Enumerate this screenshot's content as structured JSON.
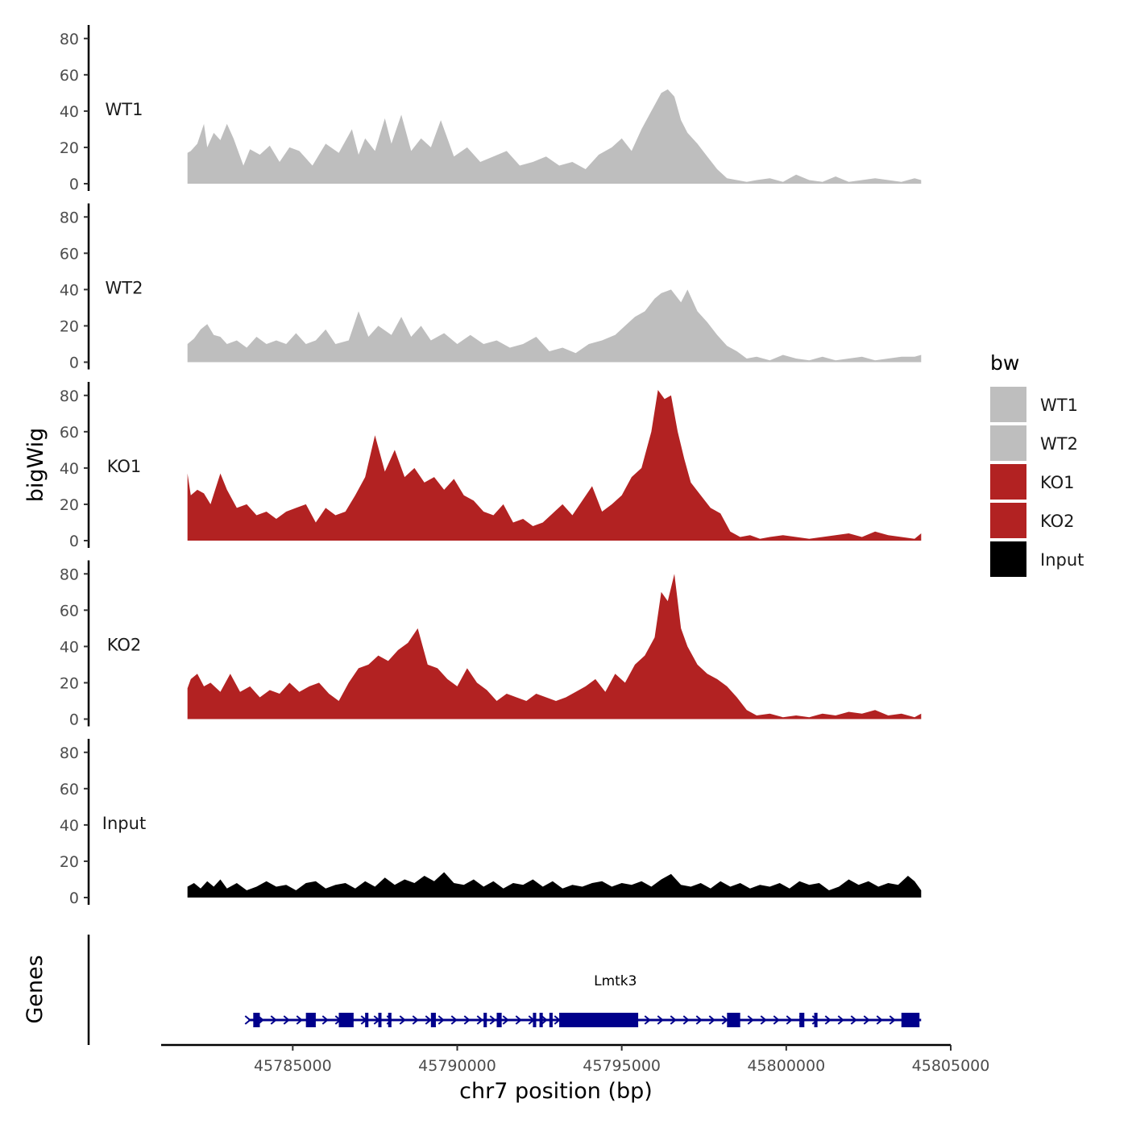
{
  "chart_data": {
    "type": "area",
    "xlabel": "chr7 position (bp)",
    "ylabel": "bigWig",
    "genes_label": "Genes",
    "xlim": [
      45781000,
      45805000
    ],
    "region": [
      45781800,
      45804100
    ],
    "xticks": [
      45785000,
      45790000,
      45795000,
      45800000,
      45805000
    ],
    "xtick_labels": [
      "45785000",
      "45790000",
      "45795000",
      "45800000",
      "45805000"
    ],
    "ylim": [
      0,
      85
    ],
    "yticks": [
      0,
      20,
      40,
      60,
      80
    ],
    "ytick_labels": [
      "0",
      "20",
      "40",
      "60",
      "80"
    ],
    "legend": {
      "title": "bw",
      "entries": [
        {
          "name": "WT1",
          "color": "#bebebe"
        },
        {
          "name": "WT2",
          "color": "#bebebe"
        },
        {
          "name": "KO1",
          "color": "#b22222"
        },
        {
          "name": "KO2",
          "color": "#b22222"
        },
        {
          "name": "Input",
          "color": "#000000"
        }
      ]
    },
    "series": [
      {
        "name": "WT1",
        "color": "#bebebe",
        "x": [
          45781800,
          45781900,
          45782100,
          45782300,
          45782400,
          45782600,
          45782800,
          45783000,
          45783200,
          45783500,
          45783700,
          45784000,
          45784300,
          45784600,
          45784900,
          45785200,
          45785600,
          45786000,
          45786400,
          45786800,
          45787000,
          45787200,
          45787500,
          45787800,
          45788000,
          45788300,
          45788600,
          45788900,
          45789200,
          45789500,
          45789900,
          45790300,
          45790700,
          45791100,
          45791500,
          45791900,
          45792300,
          45792700,
          45793100,
          45793500,
          45793900,
          45794300,
          45794700,
          45795000,
          45795300,
          45795600,
          45795900,
          45796200,
          45796400,
          45796600,
          45796800,
          45797000,
          45797300,
          45797600,
          45797900,
          45798200,
          45798500,
          45798800,
          45799100,
          45799500,
          45799900,
          45800300,
          45800700,
          45801100,
          45801500,
          45801900,
          45802300,
          45802700,
          45803100,
          45803500,
          45803900,
          45804100
        ],
        "values": [
          17,
          18,
          22,
          33,
          20,
          28,
          24,
          33,
          25,
          10,
          19,
          16,
          21,
          12,
          20,
          18,
          10,
          22,
          17,
          30,
          16,
          25,
          18,
          36,
          22,
          38,
          18,
          25,
          20,
          35,
          15,
          20,
          12,
          15,
          18,
          10,
          12,
          15,
          10,
          12,
          8,
          16,
          20,
          25,
          18,
          30,
          40,
          50,
          52,
          48,
          35,
          28,
          22,
          15,
          8,
          3,
          2,
          1,
          2,
          3,
          1,
          5,
          2,
          1,
          4,
          1,
          2,
          3,
          2,
          1,
          3,
          2
        ]
      },
      {
        "name": "WT2",
        "color": "#bebebe",
        "x": [
          45781800,
          45782000,
          45782200,
          45782400,
          45782600,
          45782800,
          45783000,
          45783300,
          45783600,
          45783900,
          45784200,
          45784500,
          45784800,
          45785100,
          45785400,
          45785700,
          45786000,
          45786300,
          45786700,
          45787000,
          45787300,
          45787600,
          45788000,
          45788300,
          45788600,
          45788900,
          45789200,
          45789600,
          45790000,
          45790400,
          45790800,
          45791200,
          45791600,
          45792000,
          45792400,
          45792800,
          45793200,
          45793600,
          45794000,
          45794400,
          45794800,
          45795100,
          45795400,
          45795700,
          45796000,
          45796200,
          45796500,
          45796800,
          45797000,
          45797300,
          45797600,
          45797900,
          45798200,
          45798500,
          45798800,
          45799100,
          45799500,
          45799900,
          45800300,
          45800700,
          45801100,
          45801500,
          45801900,
          45802300,
          45802700,
          45803100,
          45803500,
          45803900,
          45804100
        ],
        "values": [
          10,
          13,
          18,
          21,
          15,
          14,
          10,
          12,
          8,
          14,
          10,
          12,
          10,
          16,
          10,
          12,
          18,
          10,
          12,
          28,
          14,
          20,
          15,
          25,
          14,
          20,
          12,
          16,
          10,
          15,
          10,
          12,
          8,
          10,
          14,
          6,
          8,
          5,
          10,
          12,
          15,
          20,
          25,
          28,
          35,
          38,
          40,
          33,
          40,
          28,
          22,
          15,
          9,
          6,
          2,
          3,
          1,
          4,
          2,
          1,
          3,
          1,
          2,
          3,
          1,
          2,
          3,
          3,
          4
        ]
      },
      {
        "name": "KO1",
        "color": "#b22222",
        "x": [
          45781800,
          45781900,
          45782100,
          45782300,
          45782500,
          45782800,
          45783000,
          45783300,
          45783600,
          45783900,
          45784200,
          45784500,
          45784800,
          45785100,
          45785400,
          45785700,
          45786000,
          45786300,
          45786600,
          45786900,
          45787200,
          45787500,
          45787800,
          45788100,
          45788400,
          45788700,
          45789000,
          45789300,
          45789600,
          45789900,
          45790200,
          45790500,
          45790800,
          45791100,
          45791400,
          45791700,
          45792000,
          45792300,
          45792600,
          45792900,
          45793200,
          45793500,
          45793800,
          45794100,
          45794400,
          45794700,
          45795000,
          45795300,
          45795600,
          45795900,
          45796100,
          45796300,
          45796500,
          45796700,
          45796900,
          45797100,
          45797400,
          45797700,
          45798000,
          45798300,
          45798600,
          45798900,
          45799200,
          45799500,
          45799900,
          45800300,
          45800700,
          45801100,
          45801500,
          45801900,
          45802300,
          45802700,
          45803100,
          45803500,
          45803900,
          45804100
        ],
        "values": [
          37,
          25,
          28,
          26,
          20,
          37,
          28,
          18,
          20,
          14,
          16,
          12,
          16,
          18,
          20,
          10,
          18,
          14,
          16,
          25,
          35,
          58,
          38,
          50,
          35,
          40,
          32,
          35,
          28,
          34,
          25,
          22,
          16,
          14,
          20,
          10,
          12,
          8,
          10,
          15,
          20,
          14,
          22,
          30,
          16,
          20,
          25,
          35,
          40,
          60,
          83,
          78,
          80,
          60,
          45,
          32,
          25,
          18,
          15,
          5,
          2,
          3,
          1,
          2,
          3,
          2,
          1,
          2,
          3,
          4,
          2,
          5,
          3,
          2,
          1,
          4
        ]
      },
      {
        "name": "KO2",
        "color": "#b22222",
        "x": [
          45781800,
          45781900,
          45782100,
          45782300,
          45782500,
          45782800,
          45783100,
          45783400,
          45783700,
          45784000,
          45784300,
          45784600,
          45784900,
          45785200,
          45785500,
          45785800,
          45786100,
          45786400,
          45786700,
          45787000,
          45787300,
          45787600,
          45787900,
          45788200,
          45788500,
          45788800,
          45789100,
          45789400,
          45789700,
          45790000,
          45790300,
          45790600,
          45790900,
          45791200,
          45791500,
          45791800,
          45792100,
          45792400,
          45792700,
          45793000,
          45793300,
          45793600,
          45793900,
          45794200,
          45794500,
          45794800,
          45795100,
          45795400,
          45795700,
          45796000,
          45796200,
          45796400,
          45796600,
          45796800,
          45797000,
          45797300,
          45797600,
          45797900,
          45798200,
          45798500,
          45798800,
          45799100,
          45799500,
          45799900,
          45800300,
          45800700,
          45801100,
          45801500,
          45801900,
          45802300,
          45802700,
          45803100,
          45803500,
          45803900,
          45804100
        ],
        "values": [
          17,
          22,
          25,
          18,
          20,
          15,
          25,
          15,
          18,
          12,
          16,
          14,
          20,
          15,
          18,
          20,
          14,
          10,
          20,
          28,
          30,
          35,
          32,
          38,
          42,
          50,
          30,
          28,
          22,
          18,
          28,
          20,
          16,
          10,
          14,
          12,
          10,
          14,
          12,
          10,
          12,
          15,
          18,
          22,
          15,
          25,
          20,
          30,
          35,
          45,
          70,
          65,
          80,
          50,
          40,
          30,
          25,
          22,
          18,
          12,
          5,
          2,
          3,
          1,
          2,
          1,
          3,
          2,
          4,
          3,
          5,
          2,
          3,
          1,
          3
        ]
      },
      {
        "name": "Input",
        "color": "#000000",
        "x": [
          45781800,
          45782000,
          45782200,
          45782400,
          45782600,
          45782800,
          45783000,
          45783300,
          45783600,
          45783900,
          45784200,
          45784500,
          45784800,
          45785100,
          45785400,
          45785700,
          45786000,
          45786300,
          45786600,
          45786900,
          45787200,
          45787500,
          45787800,
          45788100,
          45788400,
          45788700,
          45789000,
          45789300,
          45789600,
          45789900,
          45790200,
          45790500,
          45790800,
          45791100,
          45791400,
          45791700,
          45792000,
          45792300,
          45792600,
          45792900,
          45793200,
          45793500,
          45793800,
          45794100,
          45794400,
          45794700,
          45795000,
          45795300,
          45795600,
          45795900,
          45796200,
          45796500,
          45796800,
          45797100,
          45797400,
          45797700,
          45798000,
          45798300,
          45798600,
          45798900,
          45799200,
          45799500,
          45799800,
          45800100,
          45800400,
          45800700,
          45801000,
          45801300,
          45801600,
          45801900,
          45802200,
          45802500,
          45802800,
          45803100,
          45803400,
          45803700,
          45803900,
          45804100
        ],
        "values": [
          6,
          8,
          5,
          9,
          6,
          10,
          5,
          8,
          4,
          6,
          9,
          6,
          7,
          4,
          8,
          9,
          5,
          7,
          8,
          5,
          9,
          6,
          11,
          7,
          10,
          8,
          12,
          9,
          14,
          8,
          7,
          10,
          6,
          9,
          5,
          8,
          7,
          10,
          6,
          9,
          5,
          7,
          6,
          8,
          9,
          6,
          8,
          7,
          9,
          6,
          10,
          13,
          7,
          6,
          8,
          5,
          9,
          6,
          8,
          5,
          7,
          6,
          8,
          5,
          9,
          7,
          8,
          4,
          6,
          10,
          7,
          9,
          6,
          8,
          7,
          12,
          9,
          4
        ]
      }
    ],
    "gene": {
      "name": "Lmtk3",
      "start": 45783800,
      "end": 45804100,
      "exons": [
        [
          45783800,
          45784000
        ],
        [
          45785400,
          45785700
        ],
        [
          45786400,
          45786850
        ],
        [
          45787200,
          45787300
        ],
        [
          45787600,
          45787680
        ],
        [
          45787900,
          45788000
        ],
        [
          45789200,
          45789350
        ],
        [
          45790800,
          45790900
        ],
        [
          45791200,
          45791350
        ],
        [
          45792300,
          45792400
        ],
        [
          45792500,
          45792600
        ],
        [
          45792800,
          45792900
        ],
        [
          45793100,
          45795500
        ],
        [
          45798200,
          45798600
        ],
        [
          45800400,
          45800550
        ],
        [
          45800850,
          45800950
        ],
        [
          45803500,
          45804050
        ]
      ]
    }
  }
}
